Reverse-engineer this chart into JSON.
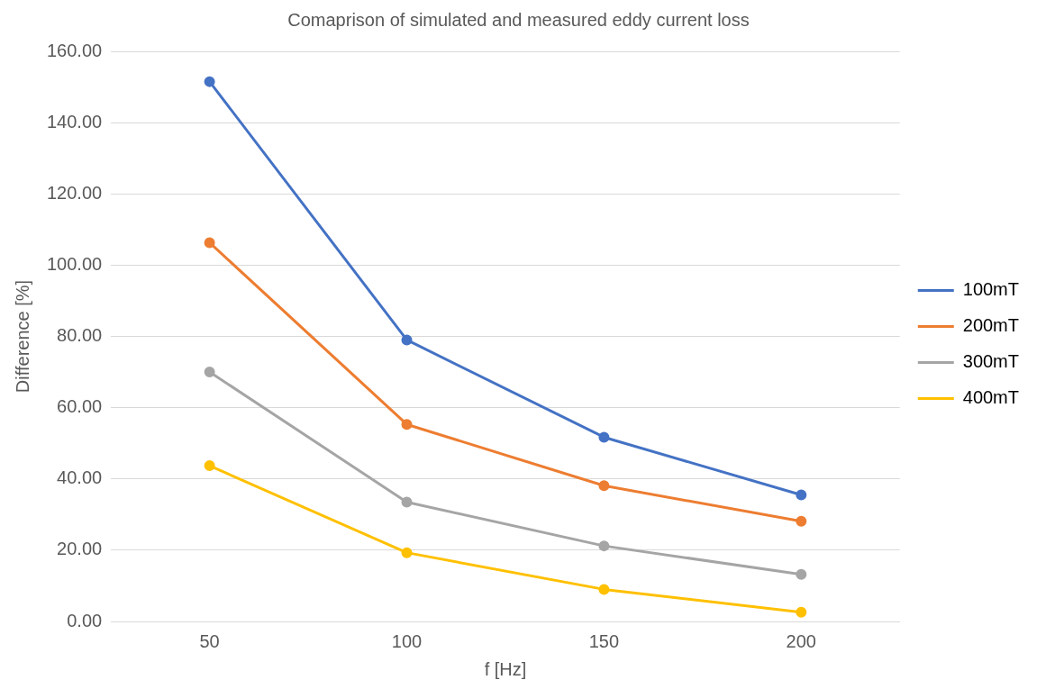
{
  "chart_data": {
    "type": "line",
    "title": "Comaprison of simulated and measured eddy current loss",
    "xlabel": "f [Hz]",
    "ylabel": "Difference [%]",
    "categories": [
      "50",
      "100",
      "150",
      "200"
    ],
    "series": [
      {
        "name": "100mT",
        "color": "#4472c4",
        "values": [
          151.5,
          79.0,
          51.7,
          35.5
        ]
      },
      {
        "name": "200mT",
        "color": "#ed7d31",
        "values": [
          106.3,
          55.3,
          38.1,
          28.1
        ]
      },
      {
        "name": "300mT",
        "color": "#a5a5a5",
        "values": [
          70.0,
          33.5,
          21.2,
          13.2
        ]
      },
      {
        "name": "400mT",
        "color": "#ffc000",
        "values": [
          43.7,
          19.3,
          9.0,
          2.6
        ]
      }
    ],
    "ylim": [
      0,
      160
    ],
    "yticks": [
      {
        "value": 0,
        "label": "0.00"
      },
      {
        "value": 20,
        "label": "20.00"
      },
      {
        "value": 40,
        "label": "40.00"
      },
      {
        "value": 60,
        "label": "60.00"
      },
      {
        "value": 80,
        "label": "80.00"
      },
      {
        "value": 100,
        "label": "100.00"
      },
      {
        "value": 120,
        "label": "120.00"
      },
      {
        "value": 140,
        "label": "140.00"
      },
      {
        "value": 160,
        "label": "160.00"
      }
    ],
    "grid": "y",
    "legend": "right",
    "marker": "circle",
    "line_style": "solid"
  }
}
